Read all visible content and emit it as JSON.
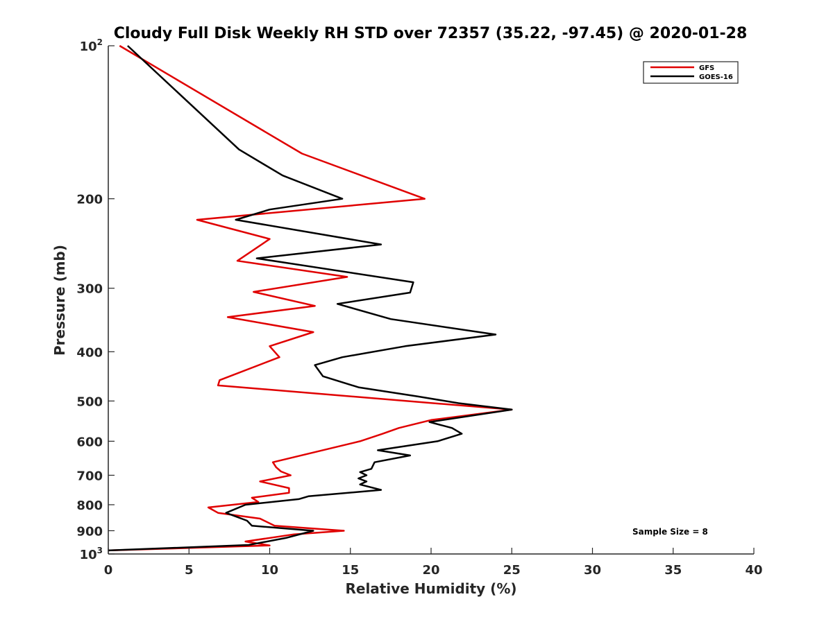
{
  "chart_data": {
    "type": "line",
    "title": "Cloudy Full Disk Weekly RH STD over 72357 (35.22, -97.45) @ 2020-01-28",
    "xlabel": "Relative Humidity (%)",
    "ylabel": "Pressure (mb)",
    "xlim": [
      0,
      40
    ],
    "ylim": [
      100,
      1000
    ],
    "y_scale": "log",
    "y_reversed": true,
    "x_ticks": [
      0,
      5,
      10,
      15,
      20,
      25,
      30,
      35,
      40
    ],
    "x_tick_labels": [
      "0",
      "5",
      "10",
      "15",
      "20",
      "25",
      "30",
      "35",
      "40"
    ],
    "y_ticks": [
      100,
      200,
      300,
      400,
      500,
      600,
      700,
      800,
      900,
      1000
    ],
    "y_tick_labels": [
      {
        "base": "10",
        "sup": "2"
      },
      {
        "base": "200",
        "sup": ""
      },
      {
        "base": "300",
        "sup": ""
      },
      {
        "base": "400",
        "sup": ""
      },
      {
        "base": "500",
        "sup": ""
      },
      {
        "base": "600",
        "sup": ""
      },
      {
        "base": "700",
        "sup": ""
      },
      {
        "base": "800",
        "sup": ""
      },
      {
        "base": "900",
        "sup": ""
      },
      {
        "base": "10",
        "sup": "3"
      }
    ],
    "grid": false,
    "legend_position": "top-right",
    "annotation": "Sample Size = 8",
    "series": [
      {
        "name": "GFS",
        "color": "#e00000",
        "points": [
          [
            0.7,
            100
          ],
          [
            12.0,
            163
          ],
          [
            19.6,
            200
          ],
          [
            5.5,
            220
          ],
          [
            10.0,
            240
          ],
          [
            8.0,
            265
          ],
          [
            14.8,
            285
          ],
          [
            9.0,
            305
          ],
          [
            12.8,
            325
          ],
          [
            7.4,
            342
          ],
          [
            12.7,
            366
          ],
          [
            10.0,
            390
          ],
          [
            10.6,
            410
          ],
          [
            6.9,
            455
          ],
          [
            6.8,
            466
          ],
          [
            25.0,
            520
          ],
          [
            20.0,
            545
          ],
          [
            18.0,
            565
          ],
          [
            17.0,
            580
          ],
          [
            15.6,
            600
          ],
          [
            10.2,
            660
          ],
          [
            10.4,
            675
          ],
          [
            10.7,
            688
          ],
          [
            11.3,
            700
          ],
          [
            9.4,
            720
          ],
          [
            11.2,
            742
          ],
          [
            11.2,
            758
          ],
          [
            8.9,
            775
          ],
          [
            9.3,
            790
          ],
          [
            6.2,
            810
          ],
          [
            6.8,
            830
          ],
          [
            9.4,
            852
          ],
          [
            10.3,
            880
          ],
          [
            14.6,
            900
          ],
          [
            11.5,
            915
          ],
          [
            8.5,
            945
          ],
          [
            10.0,
            962
          ],
          [
            0.0,
            984
          ]
        ]
      },
      {
        "name": "GOES-16",
        "color": "#000000",
        "points": [
          [
            1.2,
            100
          ],
          [
            8.1,
            160
          ],
          [
            10.8,
            180
          ],
          [
            14.5,
            200
          ],
          [
            10.0,
            210
          ],
          [
            7.9,
            220
          ],
          [
            16.9,
            246
          ],
          [
            9.2,
            262
          ],
          [
            18.9,
            292
          ],
          [
            18.7,
            306
          ],
          [
            14.2,
            322
          ],
          [
            17.5,
            345
          ],
          [
            24.0,
            370
          ],
          [
            18.4,
            390
          ],
          [
            14.5,
            410
          ],
          [
            12.8,
            425
          ],
          [
            13.3,
            447
          ],
          [
            15.5,
            470
          ],
          [
            19.2,
            490
          ],
          [
            21.7,
            505
          ],
          [
            25.0,
            520
          ],
          [
            19.9,
            550
          ],
          [
            21.3,
            565
          ],
          [
            21.9,
            580
          ],
          [
            20.4,
            600
          ],
          [
            16.7,
            625
          ],
          [
            18.7,
            640
          ],
          [
            16.5,
            660
          ],
          [
            16.3,
            680
          ],
          [
            15.6,
            690
          ],
          [
            16.0,
            700
          ],
          [
            15.5,
            710
          ],
          [
            16.0,
            720
          ],
          [
            15.6,
            730
          ],
          [
            16.9,
            748
          ],
          [
            12.4,
            770
          ],
          [
            11.8,
            780
          ],
          [
            8.5,
            800
          ],
          [
            7.3,
            830
          ],
          [
            8.6,
            860
          ],
          [
            8.9,
            880
          ],
          [
            12.7,
            900
          ],
          [
            11.0,
            930
          ],
          [
            8.7,
            960
          ],
          [
            0.0,
            984
          ]
        ]
      }
    ]
  }
}
